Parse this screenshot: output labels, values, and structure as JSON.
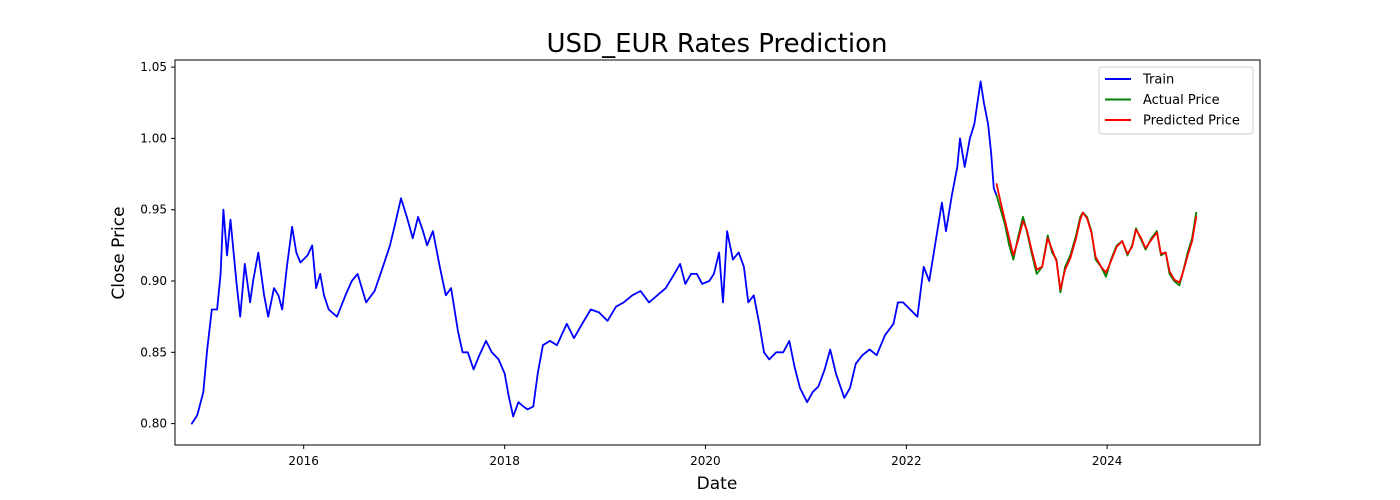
{
  "chart_data": {
    "type": "line",
    "title": "USD_EUR Rates Prediction",
    "xlabel": "Date",
    "ylabel": "Close Price",
    "xlim": [
      "2014-09-20",
      "2025-07-10"
    ],
    "ylim": [
      0.785,
      1.055
    ],
    "x_ticks": [
      "2016",
      "2018",
      "2020",
      "2022",
      "2024"
    ],
    "y_ticks": [
      "0.80",
      "0.85",
      "0.90",
      "0.95",
      "1.00",
      "1.05"
    ],
    "grid": false,
    "legend_position": "top-right",
    "series": [
      {
        "name": "Train",
        "color": "#0000ff",
        "points": [
          [
            "2014-11-20",
            0.8
          ],
          [
            "2014-12-10",
            0.806
          ],
          [
            "2015-01-01",
            0.822
          ],
          [
            "2015-01-15",
            0.852
          ],
          [
            "2015-02-01",
            0.88
          ],
          [
            "2015-02-20",
            0.88
          ],
          [
            "2015-03-05",
            0.905
          ],
          [
            "2015-03-15",
            0.95
          ],
          [
            "2015-03-28",
            0.918
          ],
          [
            "2015-04-10",
            0.943
          ],
          [
            "2015-05-01",
            0.9
          ],
          [
            "2015-05-15",
            0.875
          ],
          [
            "2015-06-01",
            0.912
          ],
          [
            "2015-06-20",
            0.885
          ],
          [
            "2015-07-01",
            0.9
          ],
          [
            "2015-07-20",
            0.92
          ],
          [
            "2015-08-10",
            0.89
          ],
          [
            "2015-08-25",
            0.875
          ],
          [
            "2015-09-15",
            0.895
          ],
          [
            "2015-10-01",
            0.89
          ],
          [
            "2015-10-15",
            0.88
          ],
          [
            "2015-11-01",
            0.91
          ],
          [
            "2015-11-20",
            0.938
          ],
          [
            "2015-12-05",
            0.92
          ],
          [
            "2015-12-20",
            0.913
          ],
          [
            "2016-01-15",
            0.918
          ],
          [
            "2016-02-01",
            0.925
          ],
          [
            "2016-02-15",
            0.895
          ],
          [
            "2016-03-01",
            0.905
          ],
          [
            "2016-03-15",
            0.89
          ],
          [
            "2016-04-01",
            0.88
          ],
          [
            "2016-05-01",
            0.875
          ],
          [
            "2016-06-01",
            0.89
          ],
          [
            "2016-06-24",
            0.9
          ],
          [
            "2016-07-15",
            0.905
          ],
          [
            "2016-08-15",
            0.885
          ],
          [
            "2016-09-15",
            0.893
          ],
          [
            "2016-10-15",
            0.91
          ],
          [
            "2016-11-10",
            0.925
          ],
          [
            "2016-12-01",
            0.942
          ],
          [
            "2016-12-20",
            0.958
          ],
          [
            "2017-01-10",
            0.945
          ],
          [
            "2017-02-01",
            0.93
          ],
          [
            "2017-02-20",
            0.945
          ],
          [
            "2017-03-10",
            0.935
          ],
          [
            "2017-03-25",
            0.925
          ],
          [
            "2017-04-15",
            0.935
          ],
          [
            "2017-05-10",
            0.91
          ],
          [
            "2017-06-01",
            0.89
          ],
          [
            "2017-06-20",
            0.895
          ],
          [
            "2017-07-15",
            0.865
          ],
          [
            "2017-08-01",
            0.85
          ],
          [
            "2017-08-20",
            0.85
          ],
          [
            "2017-09-10",
            0.838
          ],
          [
            "2017-10-01",
            0.848
          ],
          [
            "2017-10-25",
            0.858
          ],
          [
            "2017-11-15",
            0.85
          ],
          [
            "2017-12-10",
            0.845
          ],
          [
            "2018-01-01",
            0.835
          ],
          [
            "2018-01-15",
            0.82
          ],
          [
            "2018-02-01",
            0.805
          ],
          [
            "2018-02-20",
            0.815
          ],
          [
            "2018-03-10",
            0.812
          ],
          [
            "2018-03-25",
            0.81
          ],
          [
            "2018-04-15",
            0.812
          ],
          [
            "2018-05-01",
            0.835
          ],
          [
            "2018-05-20",
            0.855
          ],
          [
            "2018-06-15",
            0.858
          ],
          [
            "2018-07-10",
            0.855
          ],
          [
            "2018-08-15",
            0.87
          ],
          [
            "2018-09-10",
            0.86
          ],
          [
            "2018-10-10",
            0.87
          ],
          [
            "2018-11-10",
            0.88
          ],
          [
            "2018-12-10",
            0.878
          ],
          [
            "2019-01-10",
            0.872
          ],
          [
            "2019-02-10",
            0.882
          ],
          [
            "2019-03-10",
            0.885
          ],
          [
            "2019-04-10",
            0.89
          ],
          [
            "2019-05-10",
            0.893
          ],
          [
            "2019-06-10",
            0.885
          ],
          [
            "2019-07-10",
            0.89
          ],
          [
            "2019-08-10",
            0.895
          ],
          [
            "2019-09-10",
            0.905
          ],
          [
            "2019-10-01",
            0.912
          ],
          [
            "2019-10-20",
            0.898
          ],
          [
            "2019-11-10",
            0.905
          ],
          [
            "2019-12-01",
            0.905
          ],
          [
            "2019-12-20",
            0.898
          ],
          [
            "2020-01-15",
            0.9
          ],
          [
            "2020-02-01",
            0.905
          ],
          [
            "2020-02-20",
            0.92
          ],
          [
            "2020-03-05",
            0.885
          ],
          [
            "2020-03-20",
            0.935
          ],
          [
            "2020-04-10",
            0.915
          ],
          [
            "2020-05-01",
            0.92
          ],
          [
            "2020-05-20",
            0.91
          ],
          [
            "2020-06-05",
            0.885
          ],
          [
            "2020-06-25",
            0.89
          ],
          [
            "2020-07-15",
            0.87
          ],
          [
            "2020-08-01",
            0.85
          ],
          [
            "2020-08-20",
            0.845
          ],
          [
            "2020-09-15",
            0.85
          ],
          [
            "2020-10-10",
            0.85
          ],
          [
            "2020-11-01",
            0.858
          ],
          [
            "2020-11-20",
            0.84
          ],
          [
            "2020-12-10",
            0.825
          ],
          [
            "2021-01-05",
            0.815
          ],
          [
            "2021-01-25",
            0.822
          ],
          [
            "2021-02-15",
            0.826
          ],
          [
            "2021-03-10",
            0.838
          ],
          [
            "2021-03-30",
            0.852
          ],
          [
            "2021-04-20",
            0.835
          ],
          [
            "2021-05-20",
            0.818
          ],
          [
            "2021-06-10",
            0.825
          ],
          [
            "2021-07-01",
            0.842
          ],
          [
            "2021-07-25",
            0.848
          ],
          [
            "2021-08-20",
            0.852
          ],
          [
            "2021-09-15",
            0.848
          ],
          [
            "2021-10-15",
            0.862
          ],
          [
            "2021-11-15",
            0.87
          ],
          [
            "2021-12-01",
            0.885
          ],
          [
            "2021-12-20",
            0.885
          ],
          [
            "2022-01-15",
            0.88
          ],
          [
            "2022-02-10",
            0.875
          ],
          [
            "2022-03-05",
            0.91
          ],
          [
            "2022-03-25",
            0.9
          ],
          [
            "2022-04-15",
            0.925
          ],
          [
            "2022-05-10",
            0.955
          ],
          [
            "2022-05-25",
            0.935
          ],
          [
            "2022-06-15",
            0.96
          ],
          [
            "2022-07-05",
            0.98
          ],
          [
            "2022-07-15",
            1.0
          ],
          [
            "2022-08-01",
            0.98
          ],
          [
            "2022-08-20",
            1.0
          ],
          [
            "2022-09-05",
            1.01
          ],
          [
            "2022-09-28",
            1.04
          ],
          [
            "2022-10-10",
            1.025
          ],
          [
            "2022-10-25",
            1.01
          ],
          [
            "2022-11-05",
            0.99
          ],
          [
            "2022-11-15",
            0.965
          ],
          [
            "2022-11-25",
            0.96
          ]
        ]
      },
      {
        "name": "Actual Price",
        "color": "#008000",
        "points": [
          [
            "2022-11-25",
            0.96
          ],
          [
            "2022-12-10",
            0.95
          ],
          [
            "2022-12-25",
            0.94
          ],
          [
            "2023-01-10",
            0.925
          ],
          [
            "2023-01-25",
            0.915
          ],
          [
            "2023-02-10",
            0.93
          ],
          [
            "2023-03-01",
            0.945
          ],
          [
            "2023-03-15",
            0.935
          ],
          [
            "2023-04-01",
            0.92
          ],
          [
            "2023-04-20",
            0.905
          ],
          [
            "2023-05-10",
            0.91
          ],
          [
            "2023-05-30",
            0.932
          ],
          [
            "2023-06-15",
            0.92
          ],
          [
            "2023-07-01",
            0.915
          ],
          [
            "2023-07-15",
            0.892
          ],
          [
            "2023-08-01",
            0.91
          ],
          [
            "2023-08-20",
            0.918
          ],
          [
            "2023-09-10",
            0.932
          ],
          [
            "2023-09-25",
            0.945
          ],
          [
            "2023-10-05",
            0.948
          ],
          [
            "2023-10-20",
            0.945
          ],
          [
            "2023-11-05",
            0.935
          ],
          [
            "2023-11-20",
            0.915
          ],
          [
            "2023-12-10",
            0.91
          ],
          [
            "2023-12-28",
            0.903
          ],
          [
            "2024-01-15",
            0.915
          ],
          [
            "2024-02-05",
            0.925
          ],
          [
            "2024-02-25",
            0.928
          ],
          [
            "2024-03-15",
            0.918
          ],
          [
            "2024-04-01",
            0.925
          ],
          [
            "2024-04-15",
            0.937
          ],
          [
            "2024-05-01",
            0.93
          ],
          [
            "2024-05-20",
            0.922
          ],
          [
            "2024-06-10",
            0.93
          ],
          [
            "2024-06-30",
            0.935
          ],
          [
            "2024-07-15",
            0.918
          ],
          [
            "2024-08-01",
            0.92
          ],
          [
            "2024-08-15",
            0.905
          ],
          [
            "2024-09-01",
            0.9
          ],
          [
            "2024-09-20",
            0.897
          ],
          [
            "2024-10-01",
            0.905
          ],
          [
            "2024-10-20",
            0.92
          ],
          [
            "2024-11-05",
            0.93
          ],
          [
            "2024-11-20",
            0.948
          ]
        ]
      },
      {
        "name": "Predicted Price",
        "color": "#ff0000",
        "points": [
          [
            "2022-11-25",
            0.968
          ],
          [
            "2022-12-10",
            0.955
          ],
          [
            "2022-12-25",
            0.943
          ],
          [
            "2023-01-10",
            0.93
          ],
          [
            "2023-01-25",
            0.918
          ],
          [
            "2023-02-10",
            0.928
          ],
          [
            "2023-03-01",
            0.942
          ],
          [
            "2023-03-15",
            0.936
          ],
          [
            "2023-04-01",
            0.922
          ],
          [
            "2023-04-20",
            0.908
          ],
          [
            "2023-05-10",
            0.91
          ],
          [
            "2023-05-30",
            0.93
          ],
          [
            "2023-06-15",
            0.922
          ],
          [
            "2023-07-01",
            0.914
          ],
          [
            "2023-07-15",
            0.894
          ],
          [
            "2023-08-01",
            0.908
          ],
          [
            "2023-08-20",
            0.916
          ],
          [
            "2023-09-10",
            0.93
          ],
          [
            "2023-09-25",
            0.943
          ],
          [
            "2023-10-05",
            0.948
          ],
          [
            "2023-10-20",
            0.944
          ],
          [
            "2023-11-05",
            0.934
          ],
          [
            "2023-11-20",
            0.917
          ],
          [
            "2023-12-10",
            0.91
          ],
          [
            "2023-12-28",
            0.906
          ],
          [
            "2024-01-15",
            0.914
          ],
          [
            "2024-02-05",
            0.924
          ],
          [
            "2024-02-25",
            0.928
          ],
          [
            "2024-03-15",
            0.919
          ],
          [
            "2024-04-01",
            0.924
          ],
          [
            "2024-04-15",
            0.936
          ],
          [
            "2024-05-01",
            0.931
          ],
          [
            "2024-05-20",
            0.923
          ],
          [
            "2024-06-10",
            0.929
          ],
          [
            "2024-06-30",
            0.934
          ],
          [
            "2024-07-15",
            0.919
          ],
          [
            "2024-08-01",
            0.92
          ],
          [
            "2024-08-15",
            0.907
          ],
          [
            "2024-09-01",
            0.901
          ],
          [
            "2024-09-20",
            0.899
          ],
          [
            "2024-10-01",
            0.905
          ],
          [
            "2024-10-20",
            0.918
          ],
          [
            "2024-11-05",
            0.928
          ],
          [
            "2024-11-20",
            0.945
          ]
        ]
      }
    ]
  }
}
